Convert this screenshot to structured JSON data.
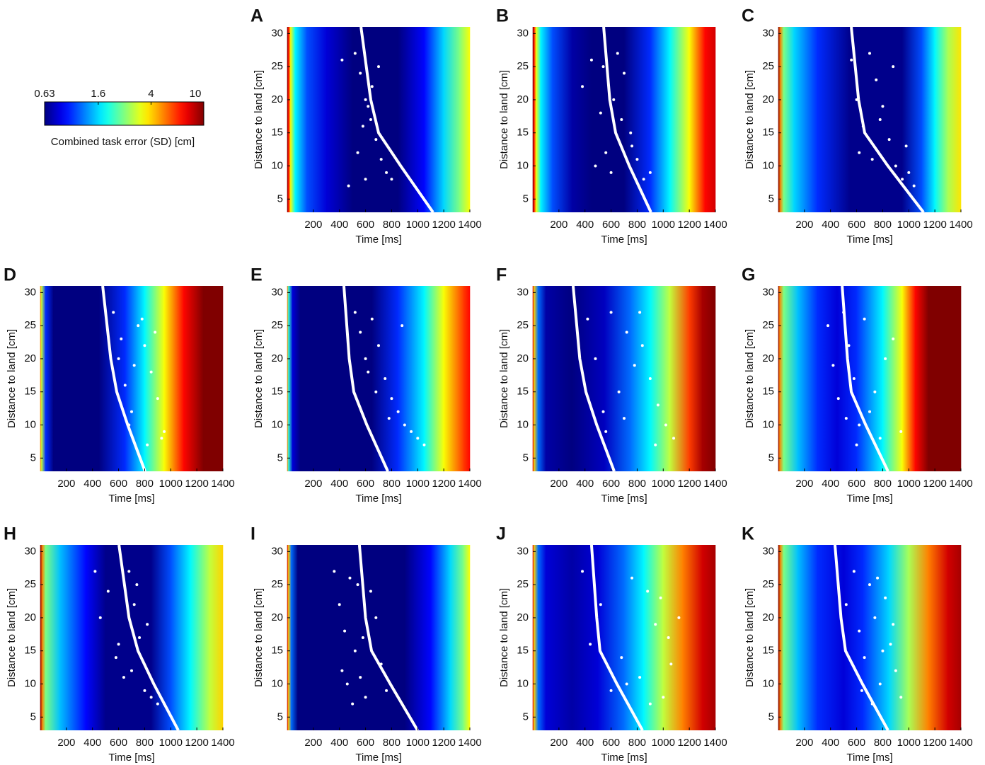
{
  "chart_data": [
    {
      "type": "colorbar",
      "label": "Combined task error (SD) [cm]",
      "lim": [
        0.63,
        10
      ],
      "ticks": [
        0.63,
        1.6,
        4,
        10
      ],
      "log": true,
      "colormap": "jet"
    },
    {
      "type": "heatmap-scatter",
      "label": "A",
      "xlabel": "Time [ms]",
      "ylabel": "Distance to land [cm]",
      "xlim": [
        0,
        1400
      ],
      "ylim": [
        3,
        31
      ],
      "xticks": [
        200,
        400,
        600,
        800,
        1000,
        1200,
        1400
      ],
      "yticks": [
        5,
        10,
        15,
        20,
        25,
        30
      ],
      "heatmap": {
        "time": [
          0,
          10,
          25,
          60,
          150,
          300,
          500,
          850,
          1050,
          1200,
          1320,
          1400
        ],
        "error": [
          10,
          7,
          3.5,
          1.75,
          1.1,
          0.8,
          0.63,
          0.63,
          0.9,
          1.6,
          2.5,
          3.5
        ]
      },
      "curve": {
        "x": [
          565,
          640,
          700,
          870,
          1118
        ],
        "y": [
          31,
          20,
          15,
          10,
          3
        ]
      },
      "curve_color": "#ffffff",
      "points": {
        "x": [
          420,
          520,
          560,
          600,
          640,
          680,
          720,
          760,
          600,
          650,
          700,
          540,
          580,
          620,
          800,
          470
        ],
        "y": [
          26,
          27,
          24,
          20,
          17,
          14,
          11,
          9,
          8,
          22,
          25,
          12,
          16,
          19,
          8,
          7
        ]
      },
      "point_color": "#ffffff"
    },
    {
      "type": "heatmap-scatter",
      "label": "B",
      "xlabel": "Time [ms]",
      "ylabel": "Distance to land [cm]",
      "xlim": [
        0,
        1400
      ],
      "ylim": [
        3,
        31
      ],
      "xticks": [
        200,
        400,
        600,
        800,
        1000,
        1200,
        1400
      ],
      "yticks": [
        5,
        10,
        15,
        20,
        25,
        30
      ],
      "heatmap": {
        "time": [
          0,
          10,
          25,
          60,
          150,
          300,
          450,
          700,
          900,
          1050,
          1200,
          1320,
          1400
        ],
        "error": [
          10,
          7,
          3.5,
          1.75,
          1.1,
          0.7,
          0.63,
          0.63,
          1.0,
          1.75,
          3.5,
          7,
          8
        ]
      },
      "curve": {
        "x": [
          543,
          590,
          635,
          740,
          906
        ],
        "y": [
          31,
          20,
          15,
          10,
          3
        ]
      },
      "curve_color": "#ffffff",
      "points": {
        "x": [
          380,
          450,
          520,
          560,
          600,
          650,
          700,
          750,
          800,
          850,
          900,
          480,
          620,
          680,
          540,
          760
        ],
        "y": [
          22,
          26,
          18,
          12,
          9,
          27,
          24,
          15,
          11,
          8,
          9,
          10,
          20,
          17,
          25,
          13
        ]
      },
      "point_color": "#ffffff"
    },
    {
      "type": "heatmap-scatter",
      "label": "C",
      "xlabel": "Time [ms]",
      "ylabel": "Distance to land [cm]",
      "xlim": [
        0,
        1400
      ],
      "ylim": [
        3,
        31
      ],
      "xticks": [
        200,
        400,
        600,
        800,
        1000,
        1200,
        1400
      ],
      "yticks": [
        5,
        10,
        15,
        20,
        25,
        30
      ],
      "heatmap": {
        "time": [
          0,
          15,
          40,
          120,
          300,
          550,
          950,
          1100,
          1200,
          1300,
          1400
        ],
        "error": [
          10,
          5,
          2.5,
          1.6,
          1.0,
          0.65,
          0.65,
          1.1,
          1.75,
          2.8,
          3.8
        ]
      },
      "curve": {
        "x": [
          559,
          615,
          662,
          840,
          1113
        ],
        "y": [
          31,
          20,
          15,
          10,
          3
        ]
      },
      "curve_color": "#ffffff",
      "points": {
        "x": [
          560,
          600,
          650,
          700,
          750,
          800,
          850,
          900,
          950,
          1000,
          1040,
          620,
          720,
          880,
          980,
          780
        ],
        "y": [
          26,
          20,
          16,
          27,
          23,
          19,
          14,
          10,
          8,
          9,
          7,
          12,
          11,
          25,
          13,
          17
        ]
      },
      "point_color": "#ffffff"
    },
    {
      "type": "heatmap-scatter",
      "label": "D",
      "xlabel": "Time [ms]",
      "ylabel": "Distance to land [cm]",
      "xlim": [
        0,
        1400
      ],
      "ylim": [
        3,
        31
      ],
      "xticks": [
        200,
        400,
        600,
        800,
        1000,
        1200,
        1400
      ],
      "yticks": [
        5,
        10,
        15,
        20,
        25,
        30
      ],
      "heatmap": {
        "time": [
          0,
          10,
          40,
          100,
          450,
          650,
          800,
          950,
          1100,
          1250,
          1400
        ],
        "error": [
          5,
          3,
          1.0,
          0.63,
          0.63,
          1.0,
          1.75,
          3.5,
          7,
          10,
          10
        ]
      },
      "curve": {
        "x": [
          478,
          540,
          586,
          670,
          803
        ],
        "y": [
          31,
          20,
          15,
          10,
          3
        ]
      },
      "curve_color": "#ffffff",
      "points": {
        "x": [
          560,
          600,
          650,
          700,
          750,
          800,
          850,
          900,
          950,
          620,
          680,
          780,
          880,
          930,
          720,
          820
        ],
        "y": [
          27,
          20,
          16,
          12,
          25,
          22,
          18,
          14,
          9,
          23,
          10,
          26,
          24,
          8,
          19,
          7
        ]
      },
      "point_color": "#ffffff"
    },
    {
      "type": "heatmap-scatter",
      "label": "E",
      "xlabel": "Time [ms]",
      "ylabel": "Distance to land [cm]",
      "xlim": [
        0,
        1400
      ],
      "ylim": [
        3,
        31
      ],
      "xticks": [
        200,
        400,
        600,
        800,
        1000,
        1200,
        1400
      ],
      "yticks": [
        5,
        10,
        15,
        20,
        25,
        30
      ],
      "heatmap": {
        "time": [
          0,
          10,
          40,
          100,
          650,
          850,
          1050,
          1200,
          1350,
          1400
        ],
        "error": [
          5,
          2,
          0.8,
          0.63,
          0.63,
          1.0,
          1.75,
          3.5,
          6,
          7
        ]
      },
      "curve": {
        "x": [
          434,
          475,
          510,
          610,
          771
        ],
        "y": [
          31,
          20,
          15,
          10,
          3
        ]
      },
      "curve_color": "#ffffff",
      "points": {
        "x": [
          520,
          560,
          600,
          650,
          700,
          750,
          800,
          850,
          900,
          950,
          1000,
          1050,
          620,
          680,
          780,
          880
        ],
        "y": [
          27,
          24,
          20,
          26,
          22,
          17,
          14,
          12,
          10,
          9,
          8,
          7,
          18,
          15,
          11,
          25
        ]
      },
      "point_color": "#ffffff"
    },
    {
      "type": "heatmap-scatter",
      "label": "F",
      "xlabel": "Time [ms]",
      "ylabel": "Distance to land [cm]",
      "xlim": [
        0,
        1400
      ],
      "ylim": [
        3,
        31
      ],
      "xticks": [
        200,
        400,
        600,
        800,
        1000,
        1200,
        1400
      ],
      "yticks": [
        5,
        10,
        15,
        20,
        25,
        30
      ],
      "heatmap": {
        "time": [
          0,
          10,
          40,
          100,
          300,
          550,
          750,
          900,
          1050,
          1200,
          1300,
          1400
        ],
        "error": [
          8,
          4,
          1.2,
          0.7,
          0.63,
          0.75,
          1.2,
          1.75,
          3,
          6,
          9,
          10
        ]
      },
      "curve": {
        "x": [
          309,
          360,
          407,
          490,
          624
        ],
        "y": [
          31,
          20,
          15,
          10,
          3
        ]
      },
      "curve_color": "#ffffff",
      "points": {
        "x": [
          420,
          480,
          540,
          600,
          660,
          720,
          780,
          840,
          900,
          960,
          1020,
          1080,
          560,
          700,
          820,
          940
        ],
        "y": [
          26,
          20,
          12,
          27,
          15,
          24,
          19,
          22,
          17,
          13,
          10,
          8,
          9,
          11,
          27,
          7
        ]
      },
      "point_color": "#ffffff"
    },
    {
      "type": "heatmap-scatter",
      "label": "G",
      "xlabel": "Time [ms]",
      "ylabel": "Distance to land [cm]",
      "xlim": [
        0,
        1400
      ],
      "ylim": [
        3,
        31
      ],
      "xticks": [
        200,
        400,
        600,
        800,
        1000,
        1200,
        1400
      ],
      "yticks": [
        5,
        10,
        15,
        20,
        25,
        30
      ],
      "heatmap": {
        "time": [
          0,
          10,
          40,
          150,
          300,
          450,
          600,
          800,
          950,
          1050,
          1150,
          1400
        ],
        "error": [
          10,
          5,
          2.5,
          1.5,
          1.0,
          0.8,
          1.0,
          1.75,
          3.5,
          7,
          10,
          10
        ]
      },
      "curve": {
        "x": [
          489,
          530,
          559,
          670,
          841
        ],
        "y": [
          31,
          20,
          15,
          10,
          3
        ]
      },
      "curve_color": "#ffffff",
      "points": {
        "x": [
          380,
          420,
          460,
          500,
          540,
          580,
          620,
          660,
          700,
          740,
          780,
          820,
          880,
          940,
          520,
          600
        ],
        "y": [
          25,
          19,
          14,
          27,
          22,
          17,
          10,
          26,
          12,
          15,
          8,
          20,
          23,
          9,
          11,
          7
        ]
      },
      "point_color": "#ffffff"
    },
    {
      "type": "heatmap-scatter",
      "label": "H",
      "xlabel": "Time [ms]",
      "ylabel": "Distance to land [cm]",
      "xlim": [
        0,
        1400
      ],
      "ylim": [
        3,
        31
      ],
      "xticks": [
        200,
        400,
        600,
        800,
        1000,
        1200,
        1400
      ],
      "yticks": [
        5,
        10,
        15,
        20,
        25,
        30
      ],
      "heatmap": {
        "time": [
          0,
          15,
          40,
          150,
          350,
          500,
          850,
          1000,
          1150,
          1300,
          1400
        ],
        "error": [
          10,
          5,
          2.5,
          1.5,
          0.9,
          0.65,
          0.65,
          1.1,
          1.75,
          3,
          4
        ]
      },
      "curve": {
        "x": [
          603,
          680,
          749,
          870,
          1058
        ],
        "y": [
          31,
          20,
          15,
          10,
          3
        ]
      },
      "curve_color": "#ffffff",
      "points": {
        "x": [
          420,
          460,
          520,
          580,
          640,
          680,
          720,
          760,
          800,
          850,
          900,
          950,
          600,
          700,
          740,
          820
        ],
        "y": [
          27,
          20,
          24,
          14,
          11,
          27,
          22,
          17,
          9,
          8,
          7,
          7,
          16,
          12,
          25,
          19
        ]
      },
      "point_color": "#ffffff"
    },
    {
      "type": "heatmap-scatter",
      "label": "I",
      "xlabel": "Time [ms]",
      "ylabel": "Distance to land [cm]",
      "xlim": [
        0,
        1400
      ],
      "ylim": [
        3,
        31
      ],
      "xticks": [
        200,
        400,
        600,
        800,
        1000,
        1200,
        1400
      ],
      "yticks": [
        5,
        10,
        15,
        20,
        25,
        30
      ],
      "heatmap": {
        "time": [
          0,
          10,
          30,
          80,
          900,
          1100,
          1250,
          1350,
          1400
        ],
        "error": [
          8,
          4,
          1.2,
          0.63,
          0.63,
          0.9,
          1.6,
          2.5,
          3.5
        ]
      },
      "curve": {
        "x": [
          553,
          600,
          646,
          790,
          999
        ],
        "y": [
          31,
          20,
          15,
          10,
          3
        ]
      },
      "curve_color": "#ffffff",
      "points": {
        "x": [
          360,
          400,
          440,
          480,
          520,
          560,
          600,
          640,
          680,
          720,
          760,
          420,
          500,
          580,
          460,
          540
        ],
        "y": [
          27,
          22,
          18,
          26,
          15,
          11,
          8,
          24,
          20,
          13,
          9,
          12,
          7,
          17,
          10,
          25
        ]
      },
      "point_color": "#ffffff"
    },
    {
      "type": "heatmap-scatter",
      "label": "J",
      "xlabel": "Time [ms]",
      "ylabel": "Distance to land [cm]",
      "xlim": [
        0,
        1400
      ],
      "ylim": [
        3,
        31
      ],
      "xticks": [
        200,
        400,
        600,
        800,
        1000,
        1200,
        1400
      ],
      "yticks": [
        5,
        10,
        15,
        20,
        25,
        30
      ],
      "heatmap": {
        "time": [
          0,
          10,
          40,
          100,
          300,
          500,
          700,
          850,
          1000,
          1150,
          1300,
          1400
        ],
        "error": [
          8,
          4,
          1.2,
          0.8,
          0.7,
          0.8,
          1.2,
          1.75,
          3,
          5,
          8,
          9
        ]
      },
      "curve": {
        "x": [
          450,
          490,
          515,
          645,
          841
        ],
        "y": [
          31,
          20,
          15,
          10,
          3
        ]
      },
      "curve_color": "#ffffff",
      "points": {
        "x": [
          380,
          440,
          520,
          600,
          680,
          760,
          820,
          880,
          940,
          1000,
          1060,
          1120,
          900,
          980,
          1040,
          720
        ],
        "y": [
          27,
          16,
          22,
          9,
          14,
          26,
          11,
          24,
          19,
          8,
          13,
          20,
          7,
          23,
          17,
          10
        ]
      },
      "point_color": "#ffffff"
    },
    {
      "type": "heatmap-scatter",
      "label": "K",
      "xlabel": "Time [ms]",
      "ylabel": "Distance to land [cm]",
      "xlim": [
        0,
        1400
      ],
      "ylim": [
        3,
        31
      ],
      "xticks": [
        200,
        400,
        600,
        800,
        1000,
        1200,
        1400
      ],
      "yticks": [
        5,
        10,
        15,
        20,
        25,
        30
      ],
      "heatmap": {
        "time": [
          0,
          15,
          40,
          150,
          300,
          500,
          650,
          850,
          1000,
          1150,
          1300,
          1400
        ],
        "error": [
          10,
          5,
          2.5,
          1.5,
          1.0,
          0.8,
          1.0,
          1.6,
          2.8,
          5,
          8,
          9
        ]
      },
      "curve": {
        "x": [
          434,
          480,
          515,
          645,
          841
        ],
        "y": [
          31,
          20,
          15,
          10,
          3
        ]
      },
      "curve_color": "#ffffff",
      "points": {
        "x": [
          520,
          580,
          620,
          660,
          700,
          740,
          780,
          820,
          860,
          900,
          940,
          640,
          720,
          800,
          880,
          760
        ],
        "y": [
          22,
          27,
          18,
          14,
          25,
          20,
          10,
          23,
          16,
          12,
          8,
          9,
          7,
          15,
          19,
          26
        ]
      },
      "point_color": "#ffffff"
    }
  ]
}
